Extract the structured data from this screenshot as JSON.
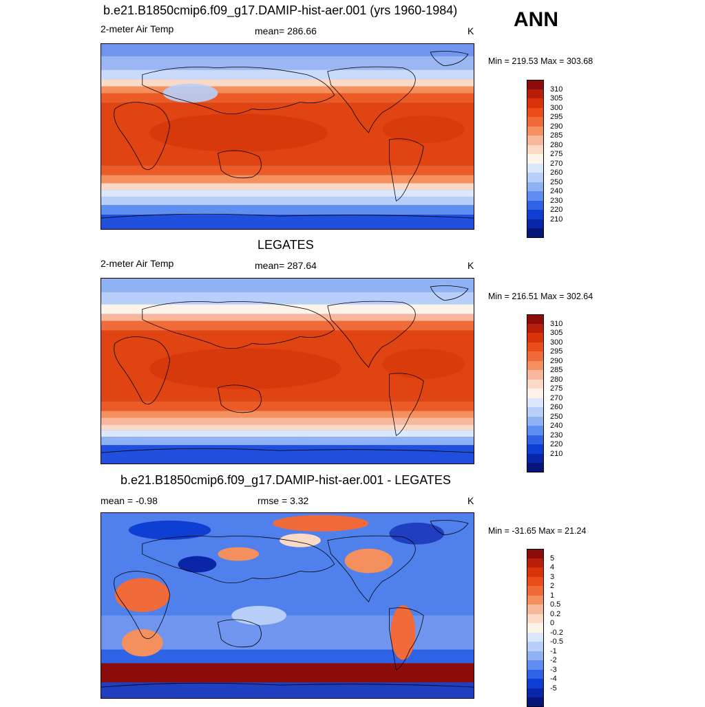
{
  "season": "ANN",
  "panels": [
    {
      "id": "model",
      "title": "b.e21.B1850cmip6.f09_g17.DAMIP-hist-aer.001 (yrs 1960-1984)",
      "left_label": "2-meter Air Temp",
      "center_label": "mean= 286.66",
      "units": "K",
      "minmax": "Min = 219.53 Max = 303.68",
      "colorbar_labels": [
        "310",
        "305",
        "300",
        "295",
        "290",
        "285",
        "280",
        "275",
        "270",
        "260",
        "250",
        "240",
        "230",
        "220",
        "210"
      ],
      "colorbar_colors": [
        "#8c0b0b",
        "#b81e0a",
        "#d8330a",
        "#ea4d1a",
        "#f06a3a",
        "#f4905e",
        "#f7b79a",
        "#fad9c6",
        "#fdf3e8",
        "#dbe8fb",
        "#b8cffa",
        "#8fb2f5",
        "#5f8ef0",
        "#2f63e6",
        "#0f3fd2",
        "#0a26a8",
        "#061578"
      ]
    },
    {
      "id": "obs",
      "title": "LEGATES",
      "left_label": "2-meter Air Temp",
      "center_label": "mean= 287.64",
      "units": "K",
      "minmax": "Min = 216.51 Max = 302.64",
      "colorbar_labels": [
        "310",
        "305",
        "300",
        "295",
        "290",
        "285",
        "280",
        "275",
        "270",
        "260",
        "250",
        "240",
        "230",
        "220",
        "210"
      ],
      "colorbar_colors": [
        "#8c0b0b",
        "#b81e0a",
        "#d8330a",
        "#ea4d1a",
        "#f06a3a",
        "#f4905e",
        "#f7b79a",
        "#fad9c6",
        "#fdf3e8",
        "#dbe8fb",
        "#b8cffa",
        "#8fb2f5",
        "#5f8ef0",
        "#2f63e6",
        "#0f3fd2",
        "#0a26a8",
        "#061578"
      ]
    },
    {
      "id": "diff",
      "title": "b.e21.B1850cmip6.f09_g17.DAMIP-hist-aer.001 - LEGATES",
      "left_label": "mean =  -0.98",
      "center_label": "rmse =   3.32",
      "units": "K",
      "minmax": "Min = -31.65 Max =  21.24",
      "colorbar_labels": [
        "5",
        "4",
        "3",
        "2",
        "1",
        "0.5",
        "0.2",
        "0",
        "-0.2",
        "-0.5",
        "-1",
        "-2",
        "-3",
        "-4",
        "-5"
      ],
      "colorbar_colors": [
        "#8c0b0b",
        "#b81e0a",
        "#d8330a",
        "#ea4d1a",
        "#f06a3a",
        "#f4905e",
        "#f7b79a",
        "#fad9c6",
        "#fdf3e8",
        "#dbe8fb",
        "#b8cffa",
        "#8fb2f5",
        "#5f8ef0",
        "#2f63e6",
        "#0f3fd2",
        "#0a26a8",
        "#061578"
      ]
    }
  ]
}
